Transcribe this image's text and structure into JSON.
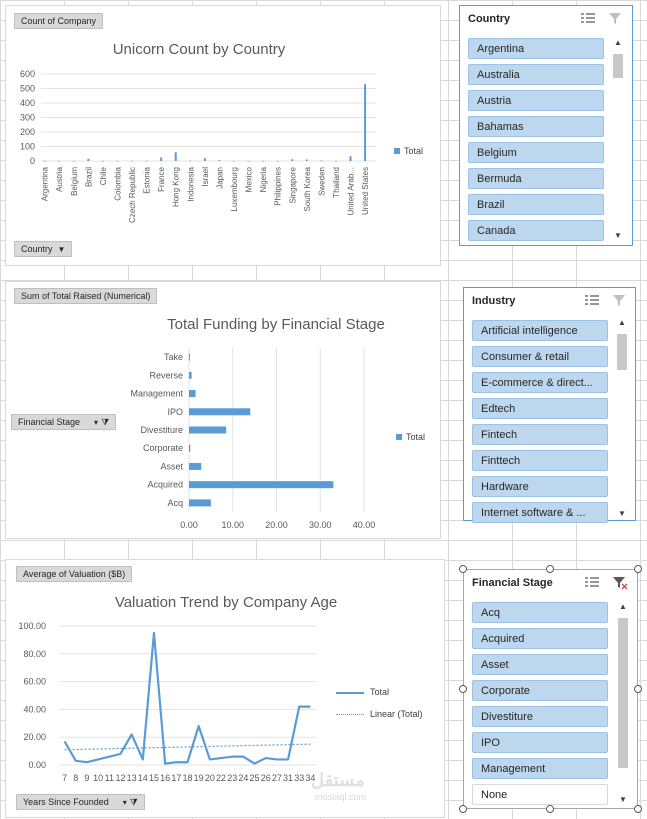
{
  "chart1": {
    "field_button": "Count of Company",
    "axis_button": "Country",
    "legend": "Total",
    "chart_data": {
      "type": "bar",
      "title": "Unicorn Count by Country",
      "categories": [
        "Argentina",
        "Austria",
        "Belgium",
        "Brazil",
        "Chile",
        "Colombia",
        "Czech Republic",
        "Estonia",
        "France",
        "Hong Kong",
        "Indonesia",
        "Israel",
        "Japan",
        "Luxembourg",
        "Mexico",
        "Nigeria",
        "Philippines",
        "Singapore",
        "South Korea",
        "Sweden",
        "Thailand",
        "United Arab...",
        "United States"
      ],
      "all_categories_count": 46,
      "series": [
        {
          "name": "Total",
          "values": [
            1,
            1,
            1,
            15,
            1,
            1,
            1,
            2,
            24,
            60,
            2,
            20,
            6,
            1,
            1,
            1,
            1,
            12,
            10,
            2,
            1,
            33,
            530
          ]
        }
      ],
      "ylim": [
        0,
        600
      ],
      "yticks": [
        "600",
        "500",
        "400",
        "300",
        "200",
        "100",
        "0"
      ]
    }
  },
  "chart2": {
    "field_button": "Sum of Total Raised (Numerical)",
    "axis_button": "Financial Stage",
    "legend": "Total",
    "chart_data": {
      "type": "bar",
      "orientation": "horizontal",
      "title": "Total Funding by Financial Stage",
      "categories": [
        "Take",
        "Reverse",
        "Management",
        "IPO",
        "Divestiture",
        "Corporate",
        "Asset",
        "Acquired",
        "Acq"
      ],
      "series": [
        {
          "name": "Total",
          "values": [
            0.1,
            0.6,
            1.5,
            14,
            8.5,
            0.3,
            2.8,
            33,
            5
          ]
        }
      ],
      "xlim": [
        0,
        40
      ],
      "xticks": [
        "0.00",
        "10.00",
        "20.00",
        "30.00",
        "40.00"
      ]
    }
  },
  "chart3": {
    "field_button": "Average of Valuation ($B)",
    "axis_button": "Years Since Founded",
    "chart_data": {
      "type": "line",
      "title": "Valuation Trend by Company Age",
      "categories": [
        "7",
        "8",
        "9",
        "10",
        "11",
        "12",
        "13",
        "14",
        "15",
        "16",
        "17",
        "18",
        "19",
        "20",
        "22",
        "23",
        "24",
        "25",
        "26",
        "27",
        "31",
        "33",
        "34"
      ],
      "series": [
        {
          "name": "Total",
          "values": [
            17,
            3,
            2,
            4,
            6,
            8,
            22,
            4,
            95,
            1,
            2,
            2,
            28,
            4,
            5,
            6,
            6,
            1,
            5,
            4,
            4,
            42,
            42
          ]
        }
      ],
      "trend": {
        "name": "Linear (Total)",
        "start": 11,
        "end": 15
      },
      "ylim": [
        0,
        100
      ],
      "yticks": [
        "100.00",
        "80.00",
        "60.00",
        "40.00",
        "20.00",
        "0.00"
      ],
      "xtick_labels": [
        "7",
        "8",
        "9",
        "10",
        "11",
        "12",
        "13",
        "14",
        "15",
        "16",
        "17",
        "18",
        "19",
        "20",
        "22",
        "23",
        "24",
        "25",
        "26",
        "27",
        "31",
        "33",
        "34"
      ]
    }
  },
  "slicers": {
    "country": {
      "title": "Country",
      "items": [
        "Argentina",
        "Australia",
        "Austria",
        "Bahamas",
        "Belgium",
        "Bermuda",
        "Brazil",
        "Canada"
      ]
    },
    "industry": {
      "title": "Industry",
      "items": [
        "Artificial intelligence",
        "Consumer & retail",
        "E-commerce & direct...",
        "Edtech",
        "Fintech",
        "Finttech",
        "Hardware",
        "Internet software & ..."
      ]
    },
    "stage": {
      "title": "Financial Stage",
      "items": [
        "Acq",
        "Acquired",
        "Asset",
        "Corporate",
        "Divestiture",
        "IPO",
        "Management",
        "None"
      ]
    }
  },
  "watermark": {
    "main": "مستقل",
    "sub": "mostaql.com"
  }
}
